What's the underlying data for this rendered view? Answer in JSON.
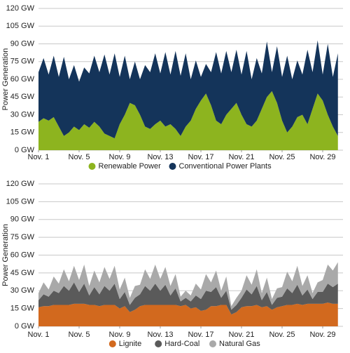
{
  "chart_data": [
    {
      "type": "area",
      "stacked": true,
      "y_label": "Power Generation",
      "grid": true,
      "xlim": [
        1,
        31
      ],
      "ylim": [
        0,
        120
      ],
      "xticks": [
        {
          "value": 1,
          "label": "Nov. 1"
        },
        {
          "value": 5,
          "label": "Nov. 5"
        },
        {
          "value": 9,
          "label": "Nov. 9"
        },
        {
          "value": 13,
          "label": "Nov. 13"
        },
        {
          "value": 17,
          "label": "Nov. 17"
        },
        {
          "value": 21,
          "label": "Nov. 21"
        },
        {
          "value": 25,
          "label": "Nov. 25"
        },
        {
          "value": 29,
          "label": "Nov. 29"
        }
      ],
      "yticks": [
        {
          "value": 0,
          "label": "0 GW"
        },
        {
          "value": 15,
          "label": "15 GW"
        },
        {
          "value": 30,
          "label": "30 GW"
        },
        {
          "value": 45,
          "label": "45 GW"
        },
        {
          "value": 60,
          "label": "60 GW"
        },
        {
          "value": 75,
          "label": "75 GW"
        },
        {
          "value": 90,
          "label": "90 GW"
        },
        {
          "value": 105,
          "label": "105 GW"
        },
        {
          "value": 120,
          "label": "120 GW"
        }
      ],
      "x": [
        1,
        1.5,
        2,
        2.5,
        3,
        3.5,
        4,
        4.5,
        5,
        5.5,
        6,
        6.5,
        7,
        7.5,
        8,
        8.5,
        9,
        9.5,
        10,
        10.5,
        11,
        11.5,
        12,
        12.5,
        13,
        13.5,
        14,
        14.5,
        15,
        15.5,
        16,
        16.5,
        17,
        17.5,
        18,
        18.5,
        19,
        19.5,
        20,
        20.5,
        21,
        21.5,
        22,
        22.5,
        23,
        23.5,
        24,
        24.5,
        25,
        25.5,
        26,
        26.5,
        27,
        27.5,
        28,
        28.5,
        29,
        29.5,
        30,
        30.5
      ],
      "series": [
        {
          "name": "Renewable Power",
          "color": "#8db41f",
          "values": [
            24,
            27,
            25,
            28,
            20,
            12,
            15,
            20,
            17,
            22,
            19,
            24,
            20,
            14,
            12,
            10,
            22,
            30,
            40,
            38,
            30,
            20,
            18,
            22,
            25,
            20,
            22,
            18,
            12,
            20,
            25,
            35,
            42,
            48,
            38,
            25,
            22,
            30,
            35,
            40,
            30,
            22,
            20,
            25,
            35,
            45,
            50,
            40,
            25,
            15,
            20,
            28,
            30,
            22,
            35,
            48,
            42,
            30,
            20,
            12
          ]
        },
        {
          "name": "Conventional Power Plants",
          "color": "#14345a",
          "values": [
            42,
            51,
            39,
            52,
            42,
            67,
            45,
            52,
            41,
            48,
            46,
            56,
            46,
            67,
            52,
            72,
            40,
            50,
            20,
            37,
            30,
            52,
            48,
            60,
            40,
            63,
            42,
            66,
            51,
            62,
            35,
            41,
            20,
            25,
            28,
            58,
            43,
            54,
            31,
            45,
            34,
            62,
            40,
            53,
            30,
            47,
            16,
            48,
            37,
            65,
            40,
            48,
            34,
            63,
            31,
            45,
            22,
            60,
            42,
            70
          ]
        }
      ]
    },
    {
      "type": "area",
      "stacked": true,
      "y_label": "Power Generation",
      "grid": true,
      "xlim": [
        1,
        31
      ],
      "ylim": [
        0,
        120
      ],
      "xticks": [
        {
          "value": 1,
          "label": "Nov. 1"
        },
        {
          "value": 5,
          "label": "Nov. 5"
        },
        {
          "value": 9,
          "label": "Nov. 9"
        },
        {
          "value": 13,
          "label": "Nov. 13"
        },
        {
          "value": 17,
          "label": "Nov. 17"
        },
        {
          "value": 21,
          "label": "Nov. 21"
        },
        {
          "value": 25,
          "label": "Nov. 25"
        },
        {
          "value": 29,
          "label": "Nov. 29"
        }
      ],
      "yticks": [
        {
          "value": 0,
          "label": "0 GW"
        },
        {
          "value": 15,
          "label": "15 GW"
        },
        {
          "value": 30,
          "label": "30 GW"
        },
        {
          "value": 45,
          "label": "45 GW"
        },
        {
          "value": 60,
          "label": "60 GW"
        },
        {
          "value": 75,
          "label": "75 GW"
        },
        {
          "value": 90,
          "label": "90 GW"
        },
        {
          "value": 105,
          "label": "105 GW"
        },
        {
          "value": 120,
          "label": "120 GW"
        }
      ],
      "x": [
        1,
        1.5,
        2,
        2.5,
        3,
        3.5,
        4,
        4.5,
        5,
        5.5,
        6,
        6.5,
        7,
        7.5,
        8,
        8.5,
        9,
        9.5,
        10,
        10.5,
        11,
        11.5,
        12,
        12.5,
        13,
        13.5,
        14,
        14.5,
        15,
        15.5,
        16,
        16.5,
        17,
        17.5,
        18,
        18.5,
        19,
        19.5,
        20,
        20.5,
        21,
        21.5,
        22,
        22.5,
        23,
        23.5,
        24,
        24.5,
        25,
        25.5,
        26,
        26.5,
        27,
        27.5,
        28,
        28.5,
        29,
        29.5,
        30,
        30.5
      ],
      "series": [
        {
          "name": "Lignite",
          "color": "#d2691e",
          "values": [
            16,
            17,
            17,
            18,
            18,
            18,
            18,
            19,
            19,
            19,
            18,
            18,
            17,
            18,
            18,
            18,
            15,
            17,
            12,
            14,
            17,
            18,
            18,
            18,
            18,
            18,
            18,
            18,
            17,
            18,
            15,
            16,
            13,
            14,
            17,
            17,
            18,
            18,
            10,
            12,
            16,
            17,
            17,
            18,
            16,
            17,
            14,
            16,
            17,
            18,
            18,
            19,
            18,
            19,
            19,
            19,
            19,
            20,
            19,
            19
          ]
        },
        {
          "name": "Hard-Coal",
          "color": "#5a5a5a",
          "values": [
            6,
            10,
            8,
            12,
            10,
            16,
            12,
            18,
            10,
            17,
            8,
            15,
            10,
            16,
            12,
            18,
            8,
            12,
            6,
            10,
            10,
            16,
            12,
            18,
            12,
            17,
            8,
            14,
            4,
            6,
            6,
            10,
            10,
            16,
            12,
            16,
            6,
            12,
            4,
            6,
            8,
            14,
            10,
            16,
            6,
            12,
            4,
            8,
            8,
            14,
            10,
            16,
            8,
            12,
            4,
            10,
            10,
            16,
            14,
            17
          ]
        },
        {
          "name": "Natural Gas",
          "color": "#a9a9a9",
          "values": [
            6,
            10,
            6,
            12,
            8,
            14,
            8,
            14,
            10,
            16,
            8,
            14,
            10,
            16,
            10,
            15,
            8,
            12,
            6,
            10,
            8,
            14,
            10,
            16,
            10,
            15,
            8,
            12,
            4,
            6,
            5,
            10,
            8,
            14,
            8,
            14,
            6,
            12,
            3,
            6,
            6,
            12,
            8,
            14,
            6,
            12,
            5,
            8,
            8,
            14,
            10,
            16,
            8,
            12,
            5,
            8,
            10,
            16,
            14,
            18
          ]
        }
      ]
    }
  ]
}
